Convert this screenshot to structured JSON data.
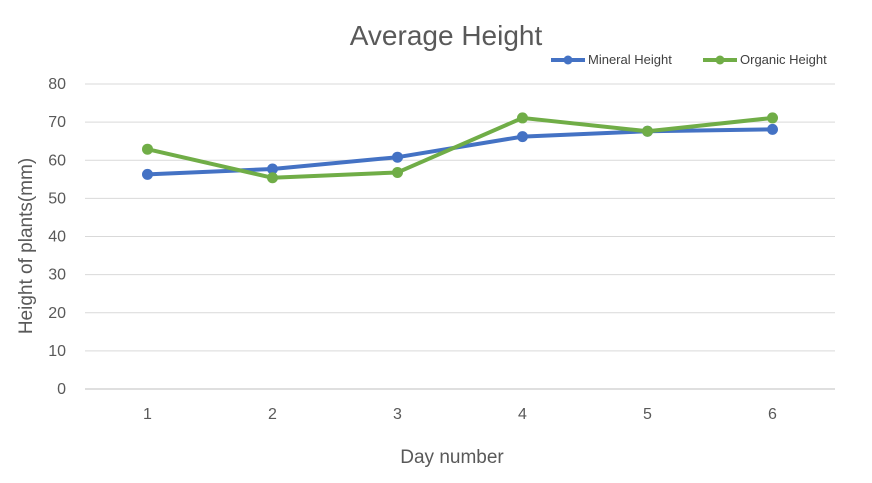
{
  "chart_data": {
    "type": "line",
    "title": "Average Height",
    "xlabel": "Day number",
    "ylabel": "Height of plants(mm)",
    "categories": [
      "1",
      "2",
      "3",
      "4",
      "5",
      "6"
    ],
    "ylim": [
      0,
      80
    ],
    "yticks": [
      0,
      10,
      20,
      30,
      40,
      50,
      60,
      70,
      80
    ],
    "grid": true,
    "legend_position": "top-right",
    "series": [
      {
        "name": "Mineral Height",
        "color": "#4472C4",
        "values": [
          56.3,
          57.7,
          60.8,
          66.2,
          67.6,
          68.1
        ]
      },
      {
        "name": "Organic Height",
        "color": "#70AD47",
        "values": [
          62.9,
          55.4,
          56.8,
          71.1,
          67.6,
          71.1
        ]
      }
    ]
  }
}
